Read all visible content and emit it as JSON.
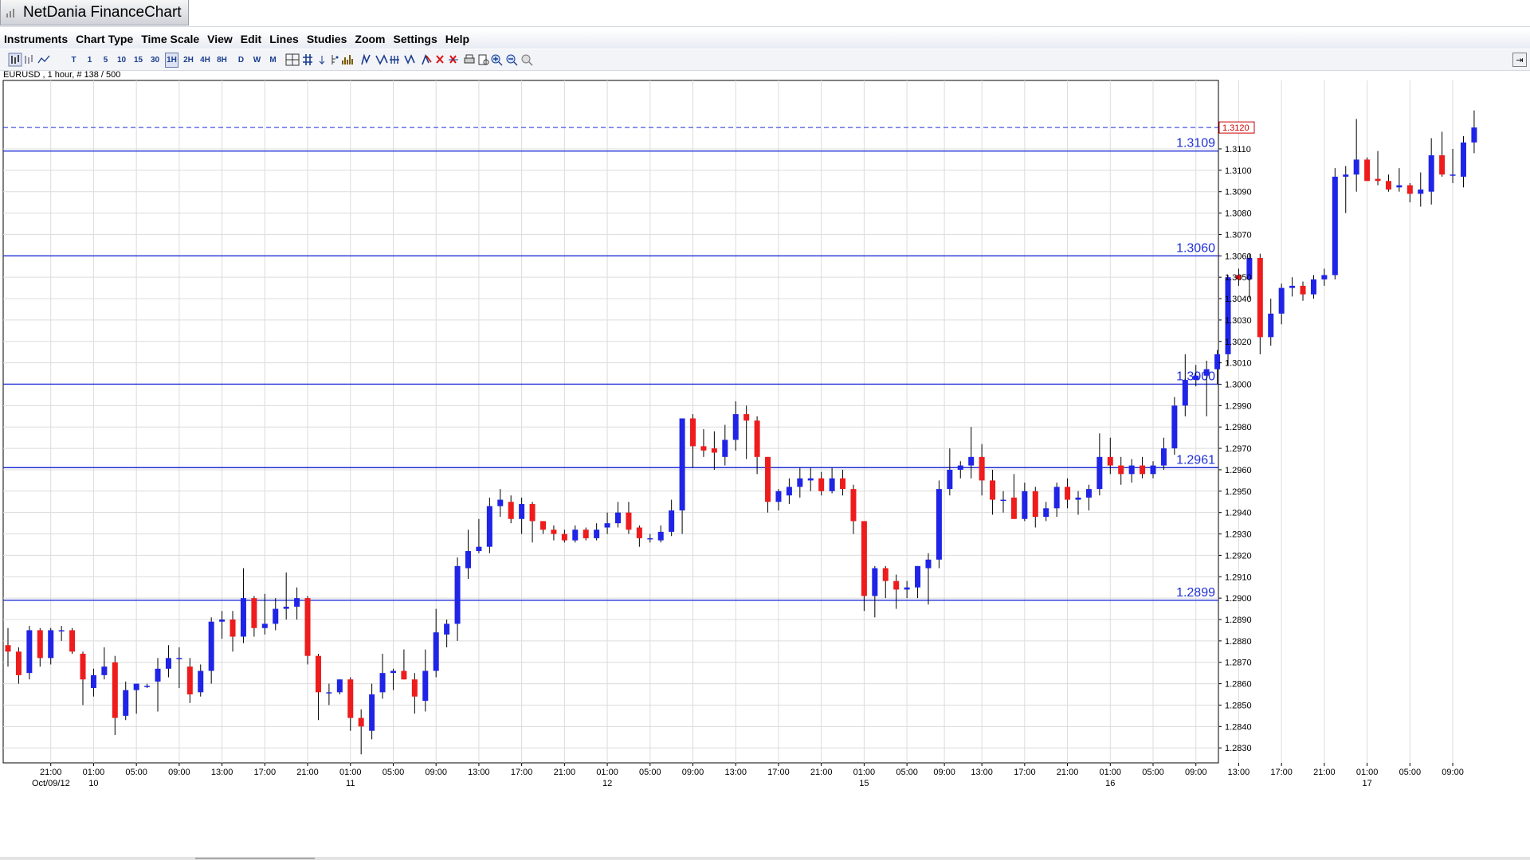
{
  "app": {
    "title": "NetDania FinanceChart"
  },
  "menu": [
    "Instruments",
    "Chart Type",
    "Time Scale",
    "View",
    "Edit",
    "Lines",
    "Studies",
    "Zoom",
    "Settings",
    "Help"
  ],
  "toolbar": {
    "timescale_buttons": [
      "T",
      "1",
      "5",
      "10",
      "15",
      "30",
      "1H",
      "2H",
      "4H",
      "8H",
      "D",
      "W",
      "M"
    ],
    "selected_timescale": "1H"
  },
  "colors": {
    "up": "#1f24e6",
    "down": "#ee1c1c",
    "line": "#1f2fd6",
    "grid": "#dcdcdc",
    "last_price": "#cc0000"
  },
  "chart_data": {
    "type": "candlestick",
    "instrument_info": "EURUSD , 1 hour, # 138 / 500",
    "y_range": [
      1.2823,
      1.3142
    ],
    "y_ticks": [
      "1.3110",
      "1.3100",
      "1.3090",
      "1.3080",
      "1.3070",
      "1.3060",
      "1.3050",
      "1.3040",
      "1.3030",
      "1.3020",
      "1.3010",
      "1.3000",
      "1.2990",
      "1.2980",
      "1.2970",
      "1.2960",
      "1.2950",
      "1.2940",
      "1.2930",
      "1.2920",
      "1.2910",
      "1.2900",
      "1.2890",
      "1.2880",
      "1.2870",
      "1.2860",
      "1.2850",
      "1.2840",
      "1.2830"
    ],
    "last_price": "1.3120",
    "horizontal_lines": [
      {
        "value": 1.3109,
        "label": "1.3109"
      },
      {
        "value": 1.306,
        "label": "1.3060"
      },
      {
        "value": 1.3,
        "label": "1.3000"
      },
      {
        "value": 1.2961,
        "label": "1.2961"
      },
      {
        "value": 1.2899,
        "label": "1.2899"
      }
    ],
    "x_labels": [
      {
        "i": 4,
        "t": "21:00"
      },
      {
        "i": 8,
        "t": "01:00",
        "d": "10"
      },
      {
        "i": 12,
        "t": "05:00"
      },
      {
        "i": 16,
        "t": "09:00"
      },
      {
        "i": 20,
        "t": "13:00"
      },
      {
        "i": 24,
        "t": "17:00"
      },
      {
        "i": 28,
        "t": "21:00"
      },
      {
        "i": 32,
        "t": "01:00",
        "d": "11"
      },
      {
        "i": 36,
        "t": "05:00"
      },
      {
        "i": 40,
        "t": "09:00"
      },
      {
        "i": 44,
        "t": "13:00"
      },
      {
        "i": 48,
        "t": "17:00"
      },
      {
        "i": 52,
        "t": "21:00"
      },
      {
        "i": 56,
        "t": "01:00",
        "d": "12"
      },
      {
        "i": 60,
        "t": "05:00"
      },
      {
        "i": 64,
        "t": "09:00"
      },
      {
        "i": 68,
        "t": "13:00"
      },
      {
        "i": 72,
        "t": "17:00"
      },
      {
        "i": 76,
        "t": "21:00"
      },
      {
        "i": 80,
        "t": "01:00",
        "d": "15"
      },
      {
        "i": 84,
        "t": "05:00"
      },
      {
        "i": 87.5,
        "t": "09:00"
      },
      {
        "i": 91,
        "t": "13:00"
      },
      {
        "i": 95,
        "t": "17:00"
      },
      {
        "i": 99,
        "t": "21:00"
      },
      {
        "i": 103,
        "t": "01:00",
        "d": "16"
      },
      {
        "i": 107,
        "t": "05:00"
      },
      {
        "i": 111,
        "t": "09:00"
      },
      {
        "i": 115,
        "t": "13:00"
      },
      {
        "i": 119,
        "t": "17:00"
      },
      {
        "i": 123,
        "t": "21:00"
      },
      {
        "i": 127,
        "t": "01:00",
        "d": "17"
      },
      {
        "i": 131,
        "t": "05:00"
      },
      {
        "i": 135,
        "t": "09:00"
      }
    ],
    "date_start_label": "Oct/09/12",
    "ohlc": [
      [
        1.2878,
        1.2886,
        1.2868,
        1.2875
      ],
      [
        1.2875,
        1.2877,
        1.286,
        1.2864
      ],
      [
        1.2865,
        1.2887,
        1.2862,
        1.2885
      ],
      [
        1.2885,
        1.2886,
        1.2868,
        1.2872
      ],
      [
        1.2872,
        1.2886,
        1.2869,
        1.2885
      ],
      [
        1.2885,
        1.2887,
        1.288,
        1.2885
      ],
      [
        1.2885,
        1.2886,
        1.2874,
        1.2875
      ],
      [
        1.2874,
        1.2875,
        1.285,
        1.2862
      ],
      [
        1.2858,
        1.2867,
        1.2854,
        1.2864
      ],
      [
        1.2864,
        1.2877,
        1.2862,
        1.2868
      ],
      [
        1.287,
        1.2873,
        1.2836,
        1.2844
      ],
      [
        1.2845,
        1.2861,
        1.2843,
        1.2857
      ],
      [
        1.2857,
        1.286,
        1.2846,
        1.286
      ],
      [
        1.2859,
        1.286,
        1.2858,
        1.2859
      ],
      [
        1.2861,
        1.2872,
        1.2847,
        1.2867
      ],
      [
        1.2867,
        1.2878,
        1.2863,
        1.2872
      ],
      [
        1.2872,
        1.2877,
        1.2858,
        1.2872
      ],
      [
        1.2868,
        1.2872,
        1.2851,
        1.2855
      ],
      [
        1.2856,
        1.2869,
        1.2854,
        1.2866
      ],
      [
        1.2866,
        1.2891,
        1.286,
        1.2889
      ],
      [
        1.2889,
        1.2894,
        1.2881,
        1.289
      ],
      [
        1.289,
        1.2894,
        1.2875,
        1.2882
      ],
      [
        1.2882,
        1.2914,
        1.2879,
        1.29
      ],
      [
        1.29,
        1.2901,
        1.2882,
        1.2886
      ],
      [
        1.2886,
        1.2902,
        1.2883,
        1.2888
      ],
      [
        1.2888,
        1.29,
        1.2885,
        1.2895
      ],
      [
        1.2895,
        1.2912,
        1.289,
        1.2896
      ],
      [
        1.2896,
        1.2905,
        1.289,
        1.29
      ],
      [
        1.29,
        1.2901,
        1.2869,
        1.2873
      ],
      [
        1.2873,
        1.2874,
        1.2843,
        1.2856
      ],
      [
        1.2856,
        1.286,
        1.285,
        1.2856
      ],
      [
        1.2856,
        1.2862,
        1.2855,
        1.2862
      ],
      [
        1.2862,
        1.2863,
        1.2838,
        1.2844
      ],
      [
        1.2844,
        1.2848,
        1.2827,
        1.284
      ],
      [
        1.2838,
        1.286,
        1.2834,
        1.2855
      ],
      [
        1.2856,
        1.2874,
        1.2853,
        1.2865
      ],
      [
        1.2865,
        1.2867,
        1.2857,
        1.2866
      ],
      [
        1.2866,
        1.2876,
        1.2862,
        1.2862
      ],
      [
        1.2862,
        1.2865,
        1.2846,
        1.2854
      ],
      [
        1.2852,
        1.2876,
        1.2847,
        1.2866
      ],
      [
        1.2866,
        1.2895,
        1.2863,
        1.2884
      ],
      [
        1.2883,
        1.289,
        1.2877,
        1.2888
      ],
      [
        1.2888,
        1.2919,
        1.288,
        1.2915
      ],
      [
        1.2914,
        1.2932,
        1.2909,
        1.2922
      ],
      [
        1.2922,
        1.2937,
        1.2921,
        1.2924
      ],
      [
        1.2924,
        1.2947,
        1.2921,
        1.2943
      ],
      [
        1.2943,
        1.2951,
        1.2938,
        1.2946
      ],
      [
        1.2945,
        1.2948,
        1.2935,
        1.2937
      ],
      [
        1.2937,
        1.2947,
        1.293,
        1.2944
      ],
      [
        1.2944,
        1.2945,
        1.2926,
        1.2936
      ],
      [
        1.2936,
        1.2936,
        1.293,
        1.2932
      ],
      [
        1.2932,
        1.2934,
        1.2927,
        1.293
      ],
      [
        1.293,
        1.2932,
        1.2926,
        1.2927
      ],
      [
        1.2927,
        1.2934,
        1.2926,
        1.2932
      ],
      [
        1.2932,
        1.2933,
        1.2927,
        1.2928
      ],
      [
        1.2928,
        1.2935,
        1.2927,
        1.2932
      ],
      [
        1.2933,
        1.294,
        1.293,
        1.2935
      ],
      [
        1.2935,
        1.2945,
        1.2933,
        1.294
      ],
      [
        1.294,
        1.2945,
        1.293,
        1.2932
      ],
      [
        1.2933,
        1.2934,
        1.2924,
        1.2928
      ],
      [
        1.2928,
        1.293,
        1.2926,
        1.2928
      ],
      [
        1.2927,
        1.2934,
        1.2926,
        1.2931
      ],
      [
        1.2931,
        1.2946,
        1.2929,
        1.2941
      ],
      [
        1.2941,
        1.2984,
        1.293,
        1.2984
      ],
      [
        1.2984,
        1.2986,
        1.2961,
        1.2971
      ],
      [
        1.2971,
        1.2979,
        1.2966,
        1.2969
      ],
      [
        1.297,
        1.2978,
        1.296,
        1.2968
      ],
      [
        1.2966,
        1.2981,
        1.2962,
        1.2974
      ],
      [
        1.2974,
        1.2992,
        1.2969,
        1.2986
      ],
      [
        1.2986,
        1.299,
        1.2965,
        1.2983
      ],
      [
        1.2983,
        1.2985,
        1.2958,
        1.2966
      ],
      [
        1.2966,
        1.2966,
        1.294,
        1.2945
      ],
      [
        1.2945,
        1.2951,
        1.2941,
        1.295
      ],
      [
        1.2948,
        1.2956,
        1.2944,
        1.2952
      ],
      [
        1.2952,
        1.2961,
        1.2947,
        1.2956
      ],
      [
        1.2955,
        1.2961,
        1.295,
        1.2956
      ],
      [
        1.2956,
        1.2959,
        1.2948,
        1.295
      ],
      [
        1.295,
        1.2961,
        1.2949,
        1.2956
      ],
      [
        1.2956,
        1.296,
        1.2948,
        1.2951
      ],
      [
        1.2951,
        1.2953,
        1.293,
        1.2936
      ],
      [
        1.2936,
        1.2936,
        1.2894,
        1.2901
      ],
      [
        1.2901,
        1.2915,
        1.2891,
        1.2914
      ],
      [
        1.2914,
        1.2915,
        1.29,
        1.2908
      ],
      [
        1.2908,
        1.2911,
        1.2895,
        1.2904
      ],
      [
        1.2904,
        1.2908,
        1.29,
        1.2905
      ],
      [
        1.2905,
        1.2915,
        1.29,
        1.2915
      ],
      [
        1.2914,
        1.2921,
        1.2897,
        1.2918
      ],
      [
        1.2918,
        1.2955,
        1.2914,
        1.2951
      ],
      [
        1.2951,
        1.297,
        1.2948,
        1.296
      ],
      [
        1.296,
        1.2964,
        1.2956,
        1.2962
      ],
      [
        1.2962,
        1.298,
        1.2956,
        1.2966
      ],
      [
        1.2966,
        1.2972,
        1.2948,
        1.2955
      ],
      [
        1.2955,
        1.296,
        1.2939,
        1.2946
      ],
      [
        1.2946,
        1.295,
        1.294,
        1.2946
      ],
      [
        1.2947,
        1.2958,
        1.2937,
        1.2937
      ],
      [
        1.2937,
        1.2954,
        1.2936,
        1.295
      ],
      [
        1.295,
        1.2952,
        1.2933,
        1.2938
      ],
      [
        1.2938,
        1.2945,
        1.2936,
        1.2942
      ],
      [
        1.2942,
        1.2954,
        1.2938,
        1.2952
      ],
      [
        1.2952,
        1.2956,
        1.2942,
        1.2946
      ],
      [
        1.2946,
        1.295,
        1.2939,
        1.2947
      ],
      [
        1.2947,
        1.2953,
        1.2941,
        1.2951
      ],
      [
        1.2951,
        1.2977,
        1.2948,
        1.2966
      ],
      [
        1.2966,
        1.2975,
        1.2958,
        1.2962
      ],
      [
        1.2962,
        1.2966,
        1.2953,
        1.2958
      ],
      [
        1.2958,
        1.2965,
        1.2954,
        1.2962
      ],
      [
        1.2962,
        1.2966,
        1.2956,
        1.2958
      ],
      [
        1.2958,
        1.2964,
        1.2956,
        1.2962
      ],
      [
        1.2962,
        1.2975,
        1.296,
        1.297
      ],
      [
        1.297,
        1.2994,
        1.2967,
        1.299
      ],
      [
        1.299,
        1.3014,
        1.2985,
        1.3002
      ],
      [
        1.3002,
        1.3009,
        1.2999,
        1.3004
      ],
      [
        1.3004,
        1.3011,
        1.2985,
        1.3007
      ],
      [
        1.3007,
        1.3016,
        1.3,
        1.3014
      ],
      [
        1.3014,
        1.3051,
        1.3009,
        1.305
      ],
      [
        1.3051,
        1.3054,
        1.3046,
        1.3049
      ],
      [
        1.3049,
        1.3061,
        1.304,
        1.3059
      ],
      [
        1.3059,
        1.3061,
        1.3014,
        1.3022
      ],
      [
        1.3022,
        1.304,
        1.3018,
        1.3033
      ],
      [
        1.3033,
        1.3047,
        1.3028,
        1.3045
      ],
      [
        1.3045,
        1.305,
        1.3041,
        1.3046
      ],
      [
        1.3046,
        1.3048,
        1.3039,
        1.3042
      ],
      [
        1.3042,
        1.3051,
        1.304,
        1.3049
      ],
      [
        1.3049,
        1.3054,
        1.3046,
        1.3051
      ],
      [
        1.3051,
        1.3101,
        1.3049,
        1.3097
      ],
      [
        1.3097,
        1.3102,
        1.308,
        1.3098
      ],
      [
        1.3098,
        1.3124,
        1.309,
        1.3105
      ],
      [
        1.3105,
        1.3106,
        1.3095,
        1.3095
      ],
      [
        1.3096,
        1.3109,
        1.3093,
        1.3095
      ],
      [
        1.3095,
        1.3098,
        1.309,
        1.3091
      ],
      [
        1.3092,
        1.3101,
        1.309,
        1.3093
      ],
      [
        1.3093,
        1.3094,
        1.3085,
        1.3089
      ],
      [
        1.3089,
        1.3099,
        1.3083,
        1.3091
      ],
      [
        1.309,
        1.3115,
        1.3084,
        1.3107
      ],
      [
        1.3107,
        1.3118,
        1.3097,
        1.3098
      ],
      [
        1.3098,
        1.311,
        1.3094,
        1.3098
      ],
      [
        1.3097,
        1.3116,
        1.3092,
        1.3113
      ],
      [
        1.3113,
        1.3128,
        1.3108,
        1.312
      ]
    ]
  }
}
